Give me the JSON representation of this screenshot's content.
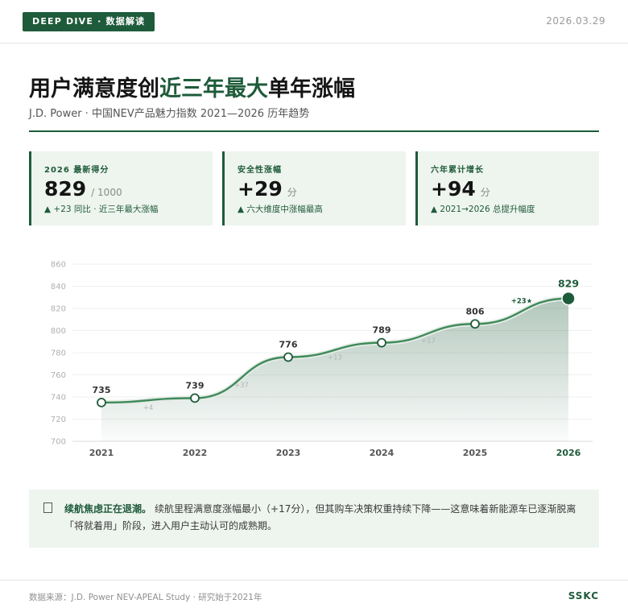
{
  "header": {
    "badge": "DEEP DIVE · 数据解读",
    "date": "2026.03.29"
  },
  "headline": {
    "title_before": "用户满意度创",
    "title_highlight": "近三年最大",
    "title_after": "单年涨幅",
    "subtitle": "J.D. Power · 中国NEV产品魅力指数 2021—2026 历年趋势"
  },
  "kpis": [
    {
      "label": "2026 最新得分",
      "value": "829",
      "unit": "/ 1000",
      "note": "▲ +23 同比 · 近三年最大涨幅"
    },
    {
      "label": "安全性涨幅",
      "value": "+29",
      "unit": "分",
      "note": "▲ 六大维度中涨幅最高"
    },
    {
      "label": "六年累计增长",
      "value": "+94",
      "unit": "分",
      "note": "▲ 2021→2026 总提升幅度"
    }
  ],
  "colors": {
    "accent": "#1e5b3a",
    "line": "#3f8a5a",
    "panel": "#eef4ee"
  },
  "chart_data": {
    "type": "line",
    "categories": [
      "2021",
      "2022",
      "2023",
      "2024",
      "2025",
      "2026"
    ],
    "values": [
      735,
      739,
      776,
      789,
      806,
      829
    ],
    "value_labels": [
      "735",
      "739",
      "776",
      "789",
      "806",
      "829"
    ],
    "deltas": [
      "+4",
      "+37",
      "+13",
      "+17",
      "+23★"
    ],
    "ylim": [
      700,
      860
    ],
    "yticks": [
      700,
      720,
      740,
      760,
      780,
      800,
      820,
      840,
      860
    ],
    "ytick_labels": [
      "700",
      "720",
      "740",
      "760",
      "780",
      "800",
      "820",
      "840",
      "860"
    ],
    "grid": true,
    "area_fill": true,
    "highlight_last": true
  },
  "callout": {
    "icon": "document-icon",
    "lead": "续航焦虑正在退潮。",
    "text": "续航里程满意度涨幅最小（+17分），但其购车决策权重持续下降——这意味着新能源车已逐渐脱离「将就着用」阶段，进入用户主动认可的成熟期。"
  },
  "footer": {
    "source": "数据来源：J.D. Power NEV-APEAL Study · 研究始于2021年",
    "brand": "SSKC"
  }
}
